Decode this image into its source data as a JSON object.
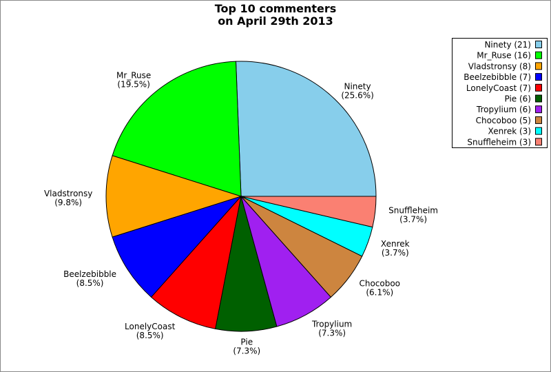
{
  "chart_data": {
    "type": "pie",
    "title": [
      "Top 10 commenters",
      "on April 29th 2013"
    ],
    "categories": [
      "Ninety",
      "Mr_Ruse",
      "Vladstronsy",
      "Beelzebibble",
      "LonelyCoast",
      "Pie",
      "Tropylium",
      "Chocoboo",
      "Xenrek",
      "Snuffleheim"
    ],
    "values": [
      21,
      16,
      8,
      7,
      7,
      6,
      6,
      5,
      3,
      3
    ],
    "value_labels": [
      "(25.6%)",
      "(19.5%)",
      "(9.8%)",
      "(8.5%)",
      "(8.5%)",
      "(7.3%)",
      "(7.3%)",
      "(6.1%)",
      "(3.7%)",
      "(3.7%)"
    ],
    "legend": [
      "Ninety (21)",
      "Mr_Ruse (16)",
      "Vladstronsy (8)",
      "Beelzebibble (7)",
      "LonelyCoast (7)",
      "Pie (6)",
      "Tropylium (6)",
      "Chocoboo (5)",
      "Xenrek (3)",
      "Snuffleheim (3)"
    ],
    "colors": [
      "#87ceeb",
      "#00ff00",
      "#ffa500",
      "#0000ff",
      "#ff0000",
      "#006000",
      "#a020f0",
      "#cd853f",
      "#00ffff",
      "#fa8072"
    ],
    "legend_position": "upper right"
  }
}
